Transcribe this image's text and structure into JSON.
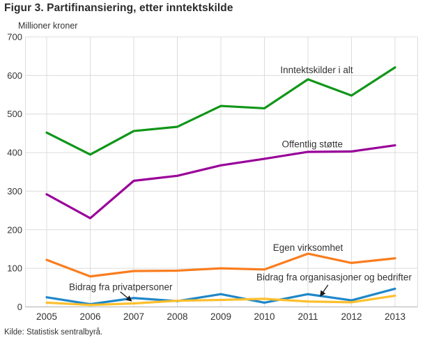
{
  "header": {
    "title": "Figur 3. Partifinansiering, etter inntektskilde"
  },
  "footer": {
    "source": "Kilde: Statistisk sentralbyrå."
  },
  "chart_data": {
    "type": "line",
    "title": "Figur 3. Partifinansiering, etter inntektskilde",
    "ylabel": "Millioner kroner",
    "xlabel": "",
    "x": [
      2005,
      2006,
      2007,
      2008,
      2009,
      2010,
      2011,
      2012,
      2013
    ],
    "ylim": [
      0,
      700
    ],
    "yticks": [
      0,
      100,
      200,
      300,
      400,
      500,
      600,
      700
    ],
    "grid": true,
    "legend_position": "inline-labels",
    "series": [
      {
        "name": "Inntektskilder i alt",
        "color": "#109618",
        "values": [
          452,
          395,
          456,
          467,
          521,
          515,
          590,
          548,
          621
        ]
      },
      {
        "name": "Offentlig støtte",
        "color": "#990099",
        "values": [
          292,
          230,
          327,
          340,
          367,
          384,
          402,
          403,
          419
        ]
      },
      {
        "name": "Egen virksomhet",
        "color": "#f97d1e",
        "values": [
          122,
          79,
          93,
          94,
          100,
          97,
          138,
          114,
          126
        ]
      },
      {
        "name": "Bidrag fra privatpersoner",
        "color": "#1e87c9",
        "values": [
          25,
          7,
          23,
          15,
          33,
          11,
          33,
          17,
          47
        ]
      },
      {
        "name": "Bidrag fra organisasjoner og bedrifter",
        "color": "#fdbf2d",
        "values": [
          11,
          5,
          9,
          16,
          18,
          21,
          14,
          12,
          29
        ]
      }
    ],
    "annotations": [
      {
        "text": "Inntektskilder i alt",
        "x": 2011.2,
        "y": 606
      },
      {
        "text": "Offentlig støtte",
        "x": 2011.1,
        "y": 414
      },
      {
        "text": "Egen virksomhet",
        "x": 2011.0,
        "y": 145
      },
      {
        "text": "Bidrag fra privatpersoner",
        "x": 2006.7,
        "y": 43,
        "arrow": {
          "x1": 2006.69,
          "y1": 39,
          "x2": 2006.94,
          "y2": 16
        }
      },
      {
        "text": "Bidrag fra organisasjoner og bedrifter",
        "x": 2011.6,
        "y": 69,
        "arrow": {
          "x1": 2011.46,
          "y1": 57,
          "x2": 2011.29,
          "y2": 29
        }
      }
    ],
    "colors": {
      "grid": "#dcdcdc",
      "axis": "#b0b0b0",
      "tick_text": "#333333",
      "annotation_text": "#333333",
      "arrow": "#1a1a1a"
    }
  }
}
